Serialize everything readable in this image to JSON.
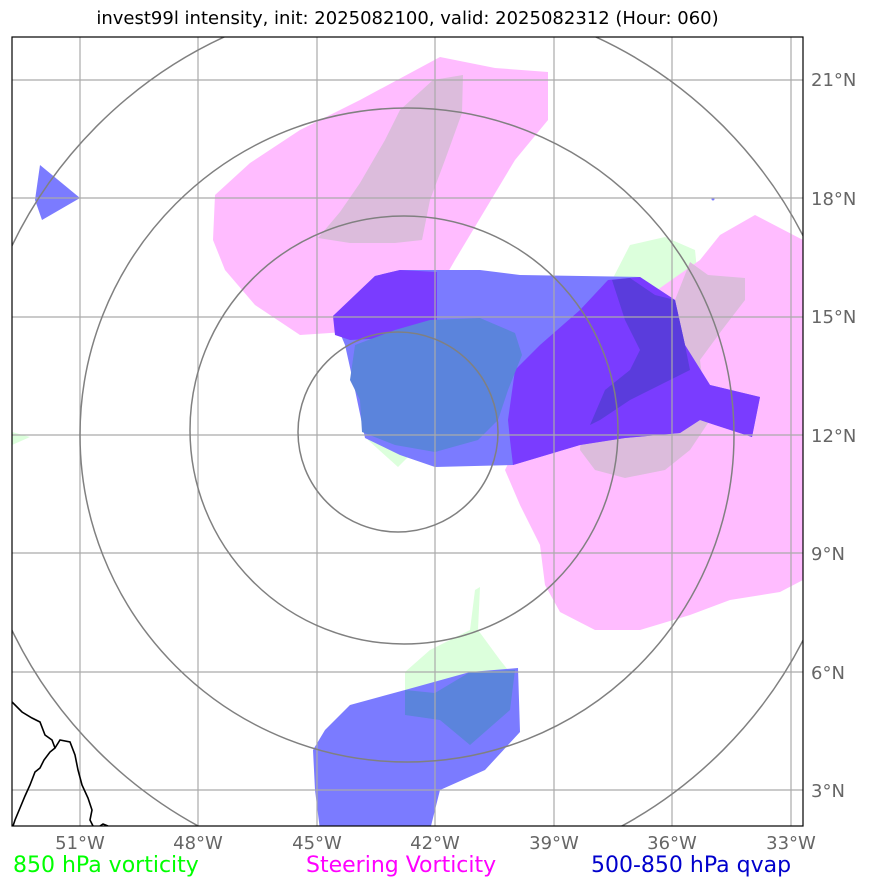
{
  "title": "invest99l intensity, init: 2025082100, valid: 2025082312 (Hour: 060)",
  "latitude_labels": [
    "21°N",
    "18°N",
    "15°N",
    "12°N",
    "9°N",
    "6°N",
    "3°N"
  ],
  "longitude_labels": [
    "51°W",
    "48°W",
    "45°W",
    "42°W",
    "39°W",
    "36°W",
    "33°W"
  ],
  "legend": [
    {
      "label": "850 hPa vorticity",
      "color": "#00ff00"
    },
    {
      "label": "Steering Vorticity",
      "color": "#ff00ff"
    },
    {
      "label": "500-850 hPa qvap",
      "color": "#0000cc"
    }
  ],
  "colors": {
    "vort850_fill": "#dcffdc",
    "steering_fill": "#ffbcff",
    "steering_overlap": "#dcbcdc",
    "qvap_fill": "#7b7bff",
    "qvap_dark": "#7a3cff",
    "qvap_overlap": "#5a3cdc",
    "qvap_green_overlap": "#5b84dc",
    "grid": "#aaaaaa",
    "rings": "#808080",
    "coast": "#000000"
  }
}
